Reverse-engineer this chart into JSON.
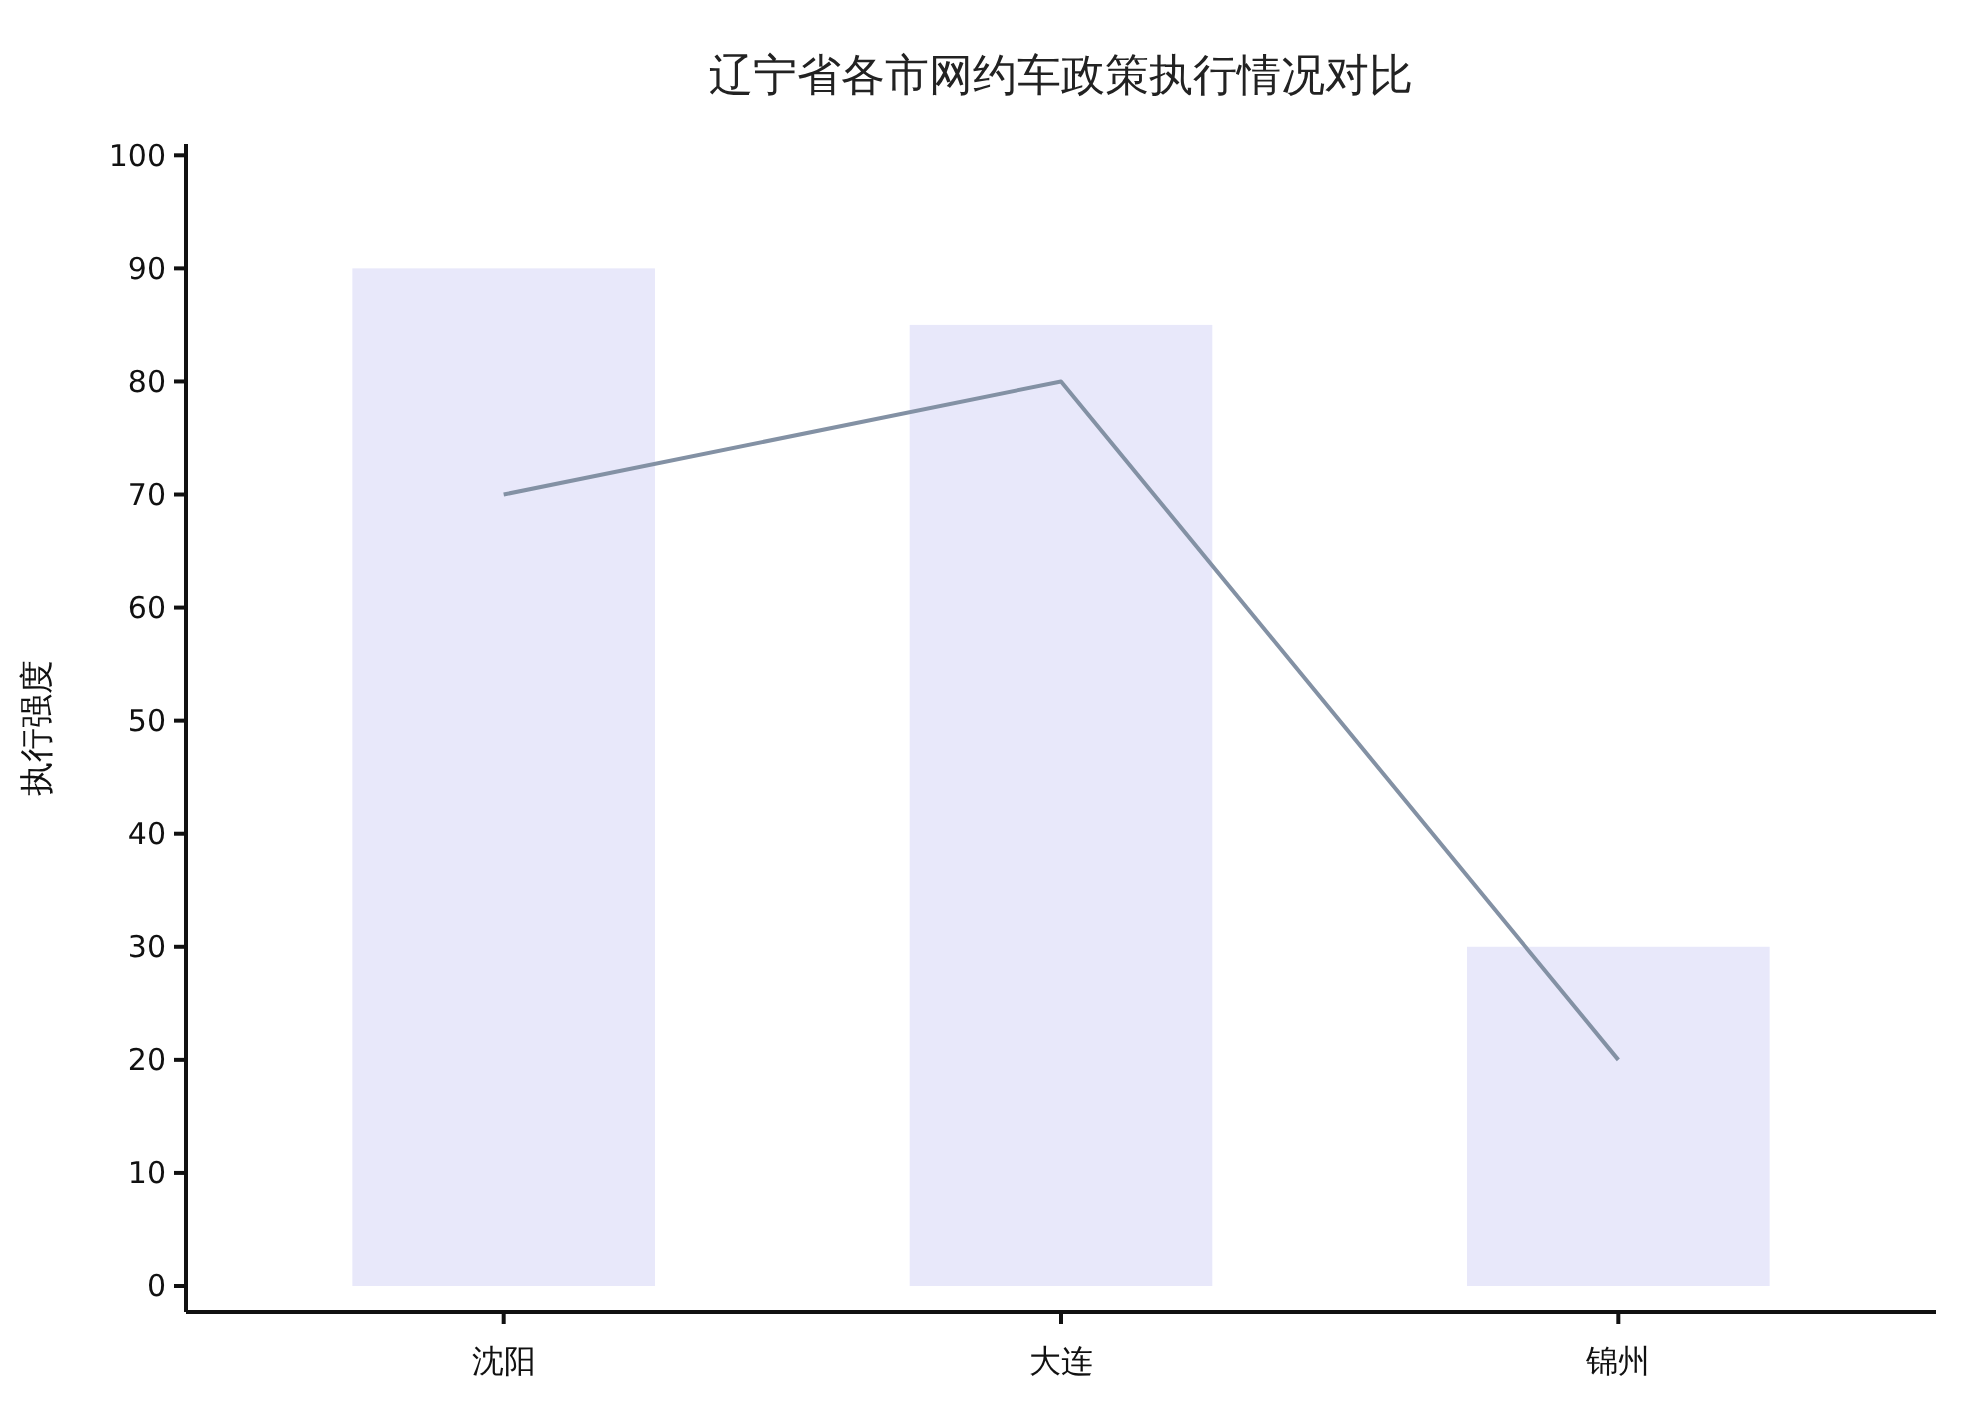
{
  "chart_data": {
    "type": "bar",
    "title": "辽宁省各市网约车政策执行情况对比",
    "ylabel": "执行强度",
    "categories": [
      "沈阳",
      "大连",
      "锦州"
    ],
    "series": [
      {
        "color": "#e8e8fa",
        "values": [
          90,
          85,
          30
        ]
      },
      {
        "type": "line",
        "color": "#8391a4",
        "values": [
          70,
          80,
          20
        ]
      }
    ],
    "ylim": [
      -2.3,
      101
    ],
    "yticks": [
      0,
      10,
      20,
      30,
      40,
      50,
      60,
      70,
      80,
      90,
      100
    ],
    "grid": false
  }
}
